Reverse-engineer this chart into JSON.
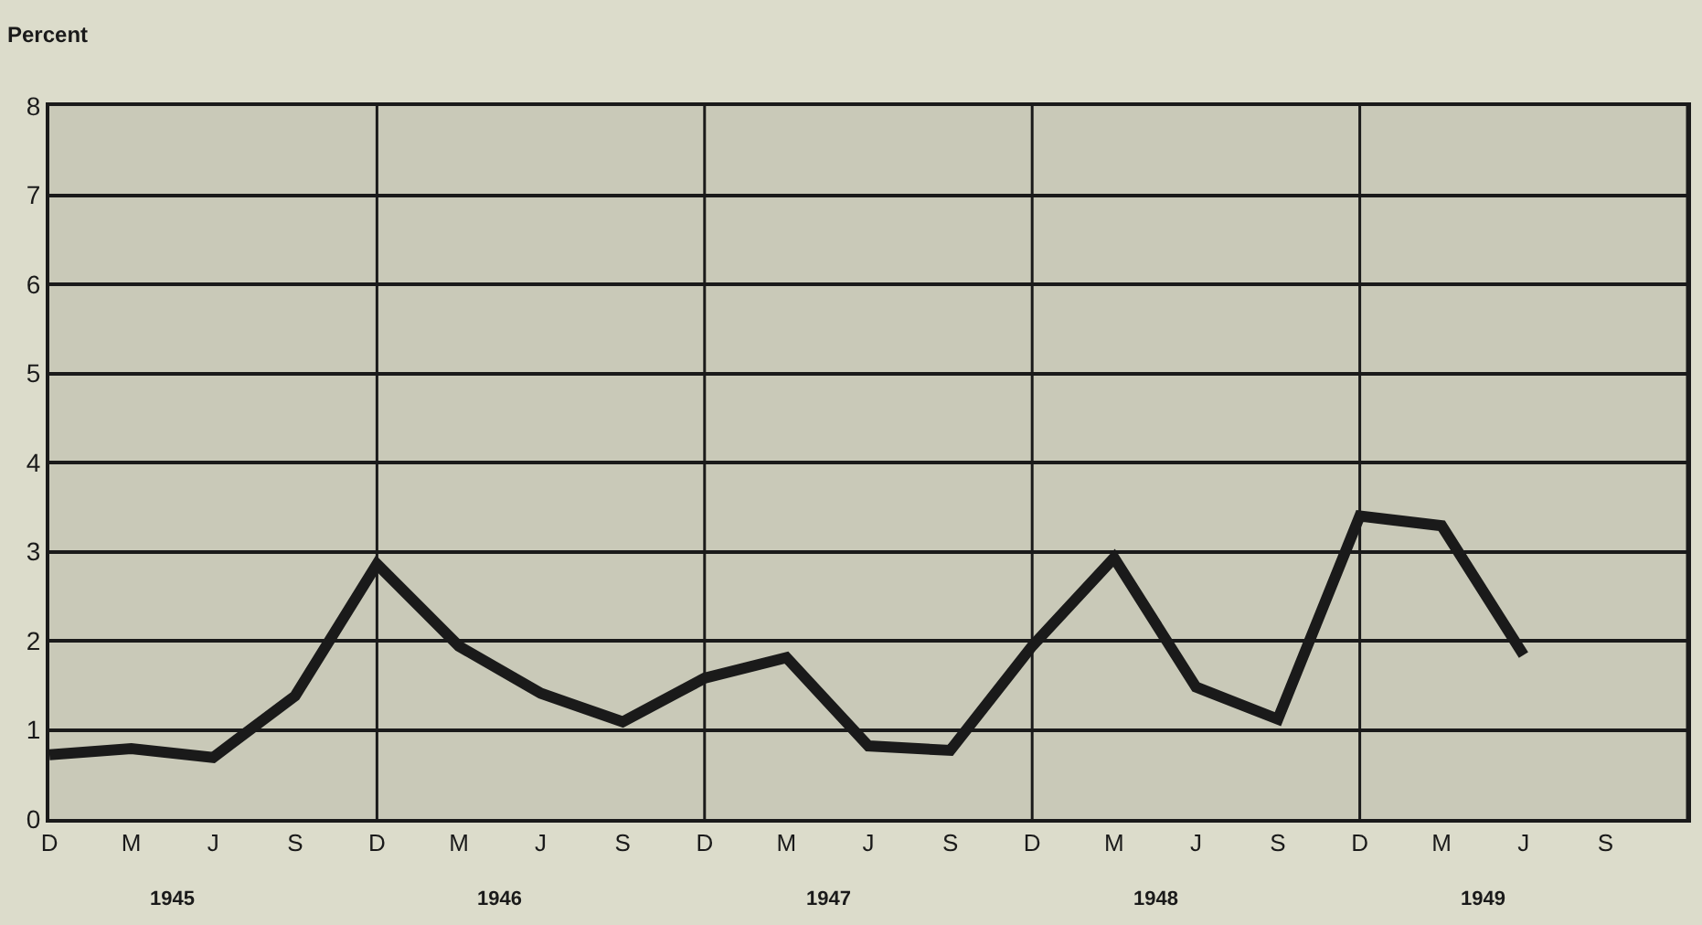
{
  "chart_data": {
    "type": "line",
    "ylabel": "Percent",
    "categories": [
      "D",
      "M",
      "J",
      "S",
      "D",
      "M",
      "J",
      "S",
      "D",
      "M",
      "J",
      "S",
      "D",
      "M",
      "J",
      "S",
      "D",
      "M",
      "J",
      "S"
    ],
    "series": [
      {
        "color": "#1a1a1a",
        "values": [
          0.72,
          0.79,
          0.69,
          1.38,
          2.86,
          1.94,
          1.41,
          1.09,
          1.58,
          1.81,
          0.82,
          0.77,
          1.94,
          2.93,
          1.48,
          1.12,
          3.4,
          3.29,
          1.84,
          null
        ]
      }
    ],
    "annotations": [
      "1945",
      "1946",
      "1947",
      "1948",
      "1949"
    ],
    "ylim": [
      0,
      8
    ],
    "yticks": [
      0,
      1,
      2,
      3,
      4,
      5,
      6,
      7,
      8
    ],
    "grid": true,
    "marker": "none",
    "line_style": "solid"
  }
}
